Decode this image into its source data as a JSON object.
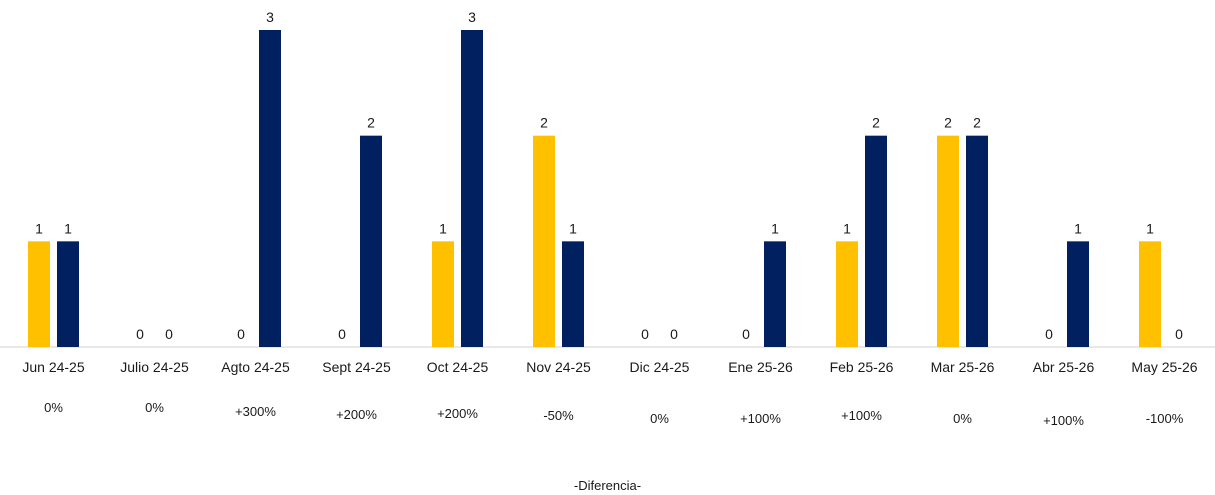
{
  "chart_data": {
    "type": "bar",
    "categories": [
      "Jun 24-25",
      "Julio 24-25",
      "Agto 24-25",
      "Sept 24-25",
      "Oct 24-25",
      "Nov 24-25",
      "Dic 24-25",
      "Ene 25-26",
      "Feb 25-26",
      "Mar 25-26",
      "Abr 25-26",
      "May 25-26"
    ],
    "series": [
      {
        "color": "#FFC000",
        "values": [
          1,
          0,
          0,
          0,
          1,
          2,
          0,
          0,
          1,
          2,
          0,
          1
        ]
      },
      {
        "color": "#002060",
        "values": [
          1,
          0,
          3,
          2,
          3,
          1,
          0,
          1,
          2,
          2,
          1,
          0
        ]
      }
    ],
    "differences": [
      "0%",
      "0%",
      "+300%",
      "+200%",
      "+200%",
      "-50%",
      "0%",
      "+100%",
      "+100%",
      "0%",
      "+100%",
      "-100%"
    ],
    "ylim": [
      0,
      3
    ],
    "grid": false,
    "legend": "none"
  },
  "footer": {
    "label": "-Diferencia-"
  }
}
